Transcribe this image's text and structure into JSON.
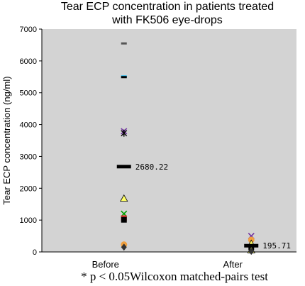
{
  "chart_data": {
    "type": "scatter",
    "title_lines": [
      "Tear ECP concentration in patients treated",
      "with FK506 eye-drops"
    ],
    "xlabel": "",
    "ylabel": "Tear ECP concentration (ng/ml)",
    "categories": [
      "Before",
      "After"
    ],
    "ylim": [
      0,
      7000
    ],
    "yticks": [
      "0",
      "1000",
      "2000",
      "3000",
      "4000",
      "5000",
      "6000",
      "7000"
    ],
    "grid": false,
    "plot_background": "#d3d3d3",
    "means": [
      {
        "category": "Before",
        "value": 2680.22,
        "label": "2680.22"
      },
      {
        "category": "After",
        "value": 195.71,
        "label": "195.71"
      }
    ],
    "points": [
      {
        "category": "Before",
        "value": 6550,
        "marker": "dash",
        "color": "#555555"
      },
      {
        "category": "Before",
        "value": 5510,
        "marker": "dash",
        "color": "#00b0f0"
      },
      {
        "category": "Before",
        "value": 5490,
        "marker": "dash",
        "color": "#000000"
      },
      {
        "category": "Before",
        "value": 3790,
        "marker": "x",
        "color": "#7030a0"
      },
      {
        "category": "Before",
        "value": 3730,
        "marker": "star",
        "color": "#000000"
      },
      {
        "category": "Before",
        "value": 1680,
        "marker": "triangle",
        "color": "#ffff66"
      },
      {
        "category": "Before",
        "value": 1200,
        "marker": "x",
        "color": "#00a000"
      },
      {
        "category": "Before",
        "value": 1060,
        "marker": "square",
        "color": "#e03030"
      },
      {
        "category": "Before",
        "value": 1010,
        "marker": "square",
        "color": "#000000"
      },
      {
        "category": "Before",
        "value": 230,
        "marker": "circle",
        "color": "#f0a040"
      },
      {
        "category": "Before",
        "value": 150,
        "marker": "diamond",
        "color": "#333333"
      },
      {
        "category": "After",
        "value": 500,
        "marker": "x",
        "color": "#7030a0"
      },
      {
        "category": "After",
        "value": 380,
        "marker": "circle",
        "color": "#f0a040"
      },
      {
        "category": "After",
        "value": 260,
        "marker": "triangle",
        "color": "#ffff66"
      },
      {
        "category": "After",
        "value": 150,
        "marker": "square",
        "color": "#000000"
      },
      {
        "category": "After",
        "value": 60,
        "marker": "triangle",
        "color": "#ffff66"
      },
      {
        "category": "After",
        "value": 20,
        "marker": "diamond",
        "color": "#333333"
      }
    ]
  },
  "footnote": "* p < 0.05Wilcoxon matched-pairs test"
}
